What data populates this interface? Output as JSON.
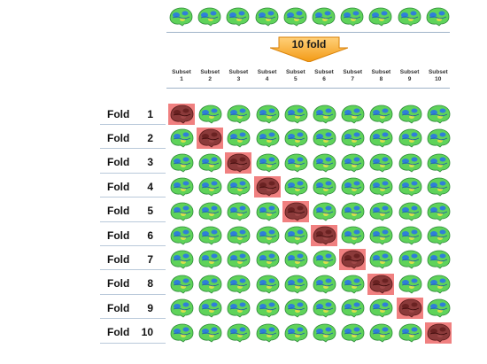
{
  "diagram": {
    "arrow_label": "10 fold",
    "subsets": [
      {
        "name": "Subset",
        "index": "1"
      },
      {
        "name": "Subset",
        "index": "2"
      },
      {
        "name": "Subset",
        "index": "3"
      },
      {
        "name": "Subset",
        "index": "4"
      },
      {
        "name": "Subset",
        "index": "5"
      },
      {
        "name": "Subset",
        "index": "6"
      },
      {
        "name": "Subset",
        "index": "7"
      },
      {
        "name": "Subset",
        "index": "8"
      },
      {
        "name": "Subset",
        "index": "9"
      },
      {
        "name": "Subset",
        "index": "10"
      }
    ],
    "folds": [
      {
        "label": "Fold",
        "index": "1",
        "test_subset": 1
      },
      {
        "label": "Fold",
        "index": "2",
        "test_subset": 2
      },
      {
        "label": "Fold",
        "index": "3",
        "test_subset": 3
      },
      {
        "label": "Fold",
        "index": "4",
        "test_subset": 4
      },
      {
        "label": "Fold",
        "index": "5",
        "test_subset": 5
      },
      {
        "label": "Fold",
        "index": "6",
        "test_subset": 6
      },
      {
        "label": "Fold",
        "index": "7",
        "test_subset": 7
      },
      {
        "label": "Fold",
        "index": "8",
        "test_subset": 8
      },
      {
        "label": "Fold",
        "index": "9",
        "test_subset": 9
      },
      {
        "label": "Fold",
        "index": "10",
        "test_subset": 10
      }
    ],
    "colors": {
      "test_highlight": "#f08080",
      "brain_green": "#5fd35a",
      "brain_blue": "#2f7fd8",
      "brain_yellow": "#d8e04a",
      "arrow_orange": "#f4a020"
    }
  }
}
